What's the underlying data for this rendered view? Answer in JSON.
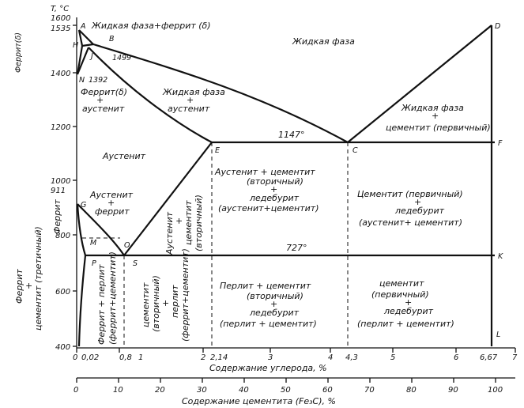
{
  "y_axis": {
    "label": "T, °C",
    "ticks": [
      "1600",
      "1400",
      "1200",
      "1000",
      "800",
      "600",
      "400"
    ]
  },
  "x_axis": {
    "label": "Содержание углерода, %",
    "ticks": [
      "0",
      "0,02",
      "0,8",
      "1",
      "2",
      "2,14",
      "3",
      "4",
      "4,3",
      "5",
      "6",
      "6,67",
      "7"
    ]
  },
  "x_axis2": {
    "label": "Содержание цементита (Fe₃C), %",
    "ticks": [
      "0",
      "10",
      "20",
      "30",
      "40",
      "50",
      "60",
      "70",
      "80",
      "90",
      "100"
    ]
  },
  "points": {
    "A": "A",
    "B": "B",
    "H": "H",
    "J": "J",
    "N": "N",
    "E": "E",
    "C": "C",
    "D": "D",
    "F": "F",
    "G": "G",
    "M": "M",
    "O": "O",
    "P": "P",
    "S": "S",
    "K": "K",
    "L": "L"
  },
  "temps": {
    "t1535": "1535",
    "t1499": "1499",
    "t1392": "1392",
    "t911": "911",
    "t1147": "1147°",
    "t727": "727°"
  },
  "regions": {
    "liquid_ferrite": "Жидкая фаза+феррит (δ)",
    "liquid": "Жидкая фаза",
    "ferrite_delta": "Феррит(δ)",
    "ferrite_austenite_l1": "Феррит(δ)",
    "ferrite_austenite_l2": "+",
    "ferrite_austenite_l3": "аустенит",
    "liquid_austenite_l1": "Жидкая фаза",
    "liquid_austenite_l2": "+",
    "liquid_austenite_l3": "аустенит",
    "liquid_cementite_l1": "Жидкая фаза",
    "liquid_cementite_l2": "+",
    "liquid_cementite_l3": "цементит (первичный)",
    "austenite": "Аустенит",
    "austenite_ferrite_l1": "Аустенит",
    "austenite_ferrite_l2": "+",
    "austenite_ferrite_l3": "феррит",
    "ferrite": "Феррит",
    "aust_cem_sec_v1": "Аустенит",
    "aust_cem_sec_v2": "+",
    "aust_cem_sec_v3": "цементит",
    "aust_cem_sec_v4": "(вторичный)",
    "aust_ledeb_l1": "Аустенит + цементит",
    "aust_ledeb_l2": "(вторичный)",
    "aust_ledeb_l3": "+",
    "aust_ledeb_l4": "ледебурит",
    "aust_ledeb_l5": "(аустенит+цементит)",
    "cem_ledeb_l1": "Цементит (первичный)",
    "cem_ledeb_l2": "+",
    "cem_ledeb_l3": "ледебурит",
    "cem_ledeb_l4": "(аустенит+ цементит)",
    "ferrite_cem_ter_v1": "Феррит",
    "ferrite_cem_ter_v2": "+",
    "ferrite_cem_ter_v3": "цементит (третичный)",
    "ferrite_pearlite_v1": "Феррит + перлит",
    "ferrite_pearlite_v2": "(феррит+цементит)",
    "cem_pearlite_v1": "цементит",
    "cem_pearlite_v2": "(вторичный)",
    "cem_pearlite_v3": "+",
    "cem_pearlite_v4": "перлит",
    "cem_pearlite_v5": "(феррит+цементит)",
    "pearl_cem_l1": "Перлит + цементит",
    "pearl_cem_l2": "(вторичный)",
    "pearl_cem_l3": "+",
    "pearl_cem_l4": "ледебурит",
    "pearl_cem_l5": "(перлит + цементит)",
    "cem_prim_low_l1": "цементит",
    "cem_prim_low_l2": "(первичный)",
    "cem_prim_low_l3": "+",
    "cem_prim_low_l4": "ледебурит",
    "cem_prim_low_l5": "(перлит + цементит)"
  }
}
